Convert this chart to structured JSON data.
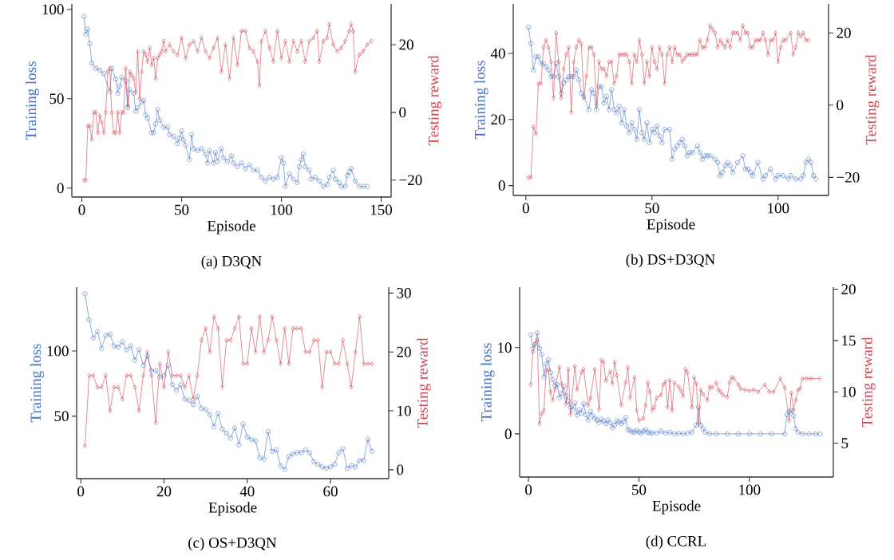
{
  "chart_data": [
    {
      "type": "line",
      "title": "(a) D3QN",
      "xlabel": "Episode",
      "ylabel": "Training loss",
      "y2label": "Testing reward",
      "xlim": [
        -5,
        155
      ],
      "xticks": [
        0,
        50,
        100,
        150
      ],
      "ylim": [
        -5,
        103
      ],
      "yticks": [
        0,
        50,
        100
      ],
      "y2lim": [
        -25,
        32
      ],
      "y2ticks": [
        {
          "value": -20,
          "label": "−20"
        },
        0,
        20
      ],
      "series": [
        {
          "color": "#4472c4",
          "marker": "circle",
          "x": [
            1,
            2,
            3,
            4,
            5,
            7,
            9,
            11,
            14,
            15,
            17,
            18,
            19,
            20,
            22,
            23,
            24,
            26,
            27,
            28,
            30,
            31,
            32,
            33,
            35,
            36,
            37,
            38,
            39,
            41,
            43,
            44,
            46,
            48,
            49,
            50,
            51,
            52,
            54,
            55,
            56,
            58,
            60,
            62,
            63,
            64,
            66,
            67,
            68,
            70,
            71,
            73,
            75,
            76,
            78,
            80,
            82,
            84,
            86,
            88,
            90,
            92,
            94,
            96,
            98,
            100,
            101,
            102,
            104,
            106,
            108,
            109,
            110,
            111,
            112,
            114,
            115,
            117,
            119,
            121,
            123,
            124,
            126,
            127,
            129,
            130,
            132,
            133,
            134,
            135,
            137,
            139,
            141,
            143
          ],
          "values": [
            96,
            86,
            89,
            81,
            70,
            67,
            66,
            64,
            54,
            67,
            61,
            53,
            57,
            62,
            60,
            45,
            55,
            53,
            43,
            45,
            48,
            49,
            41,
            39,
            31,
            31,
            36,
            44,
            38,
            34,
            34,
            30,
            29,
            25,
            28,
            32,
            27,
            24,
            16,
            30,
            22,
            21,
            22,
            19,
            14,
            21,
            14,
            20,
            15,
            22,
            17,
            15,
            18,
            14,
            12,
            14,
            11,
            13,
            10,
            10,
            6,
            4,
            6,
            5,
            6,
            17,
            14,
            1,
            8,
            5,
            3,
            12,
            16,
            19,
            12,
            10,
            5,
            6,
            4,
            1,
            2,
            6,
            10,
            5,
            3,
            1,
            1,
            7,
            9,
            11,
            4,
            1,
            1,
            1
          ]
        },
        {
          "axis": "y2",
          "color": "#d0434f",
          "marker": "diamond",
          "x": [
            1,
            2,
            3,
            4,
            5,
            6,
            7,
            8,
            9,
            10,
            11,
            12,
            13,
            14,
            15,
            16,
            17,
            18,
            19,
            20,
            21,
            22,
            23,
            24,
            25,
            26,
            27,
            28,
            29,
            30,
            31,
            32,
            33,
            34,
            35,
            36,
            37,
            38,
            39,
            40,
            41,
            42,
            44,
            46,
            48,
            50,
            52,
            54,
            56,
            58,
            60,
            62,
            64,
            66,
            68,
            70,
            72,
            74,
            76,
            78,
            80,
            82,
            84,
            86,
            88,
            89,
            90,
            92,
            94,
            96,
            98,
            100,
            102,
            104,
            106,
            108,
            110,
            112,
            114,
            116,
            118,
            119,
            121,
            123,
            124,
            126,
            128,
            130,
            132,
            134,
            135,
            136,
            137,
            139,
            141,
            143,
            145
          ],
          "values": [
            -20,
            -20,
            -4,
            -4,
            -8,
            0,
            0,
            -6,
            -1,
            -3,
            -6,
            0,
            12,
            13,
            0,
            -6,
            -6,
            0,
            -6,
            0,
            0,
            13,
            2,
            12,
            11,
            10,
            6,
            18,
            4,
            12,
            18,
            17,
            15,
            19,
            14,
            16,
            10,
            16,
            17,
            18,
            21,
            18,
            20,
            18,
            17,
            22,
            16,
            20,
            21,
            18,
            22,
            18,
            16,
            19,
            22,
            12,
            20,
            10,
            22,
            14,
            24,
            24,
            19,
            18,
            15,
            8,
            21,
            24,
            19,
            15,
            24,
            16,
            21,
            15,
            21,
            18,
            21,
            15,
            21,
            22,
            24,
            15,
            21,
            22,
            26,
            20,
            18,
            19,
            21,
            24,
            26,
            24,
            12,
            17,
            18,
            20,
            21
          ]
        }
      ]
    },
    {
      "type": "line",
      "title": "(b) DS+D3QN",
      "xlabel": "Episode",
      "ylabel": "Training loss",
      "y2label": "Testing reward",
      "xlim": [
        -5,
        120
      ],
      "xticks": [
        0,
        50,
        100
      ],
      "ylim": [
        -3,
        55
      ],
      "yticks": [
        0,
        20,
        40
      ],
      "y2lim": [
        -25,
        28
      ],
      "y2ticks": [
        {
          "value": -20,
          "label": "−20"
        },
        0,
        20
      ],
      "series": [
        {
          "color": "#4472c4",
          "marker": "circle",
          "x": [
            1,
            2,
            3,
            4,
            5,
            6,
            7,
            8,
            9,
            10,
            11,
            12,
            13,
            14,
            15,
            16,
            17,
            18,
            19,
            20,
            21,
            22,
            23,
            25,
            26,
            27,
            28,
            29,
            30,
            31,
            32,
            33,
            34,
            35,
            36,
            37,
            38,
            39,
            40,
            41,
            42,
            43,
            44,
            45,
            46,
            47,
            48,
            49,
            50,
            51,
            52,
            53,
            54,
            55,
            57,
            58,
            59,
            60,
            61,
            62,
            63,
            64,
            65,
            66,
            68,
            69,
            70,
            71,
            72,
            73,
            75,
            76,
            77,
            78,
            79,
            80,
            81,
            82,
            84,
            86,
            87,
            88,
            89,
            90,
            92,
            94,
            95,
            97,
            99,
            100,
            102,
            104,
            105,
            107,
            109,
            110,
            111,
            112,
            113,
            114,
            115
          ],
          "values": [
            48,
            43,
            35,
            39,
            39,
            37,
            37,
            36,
            35,
            33,
            33,
            37,
            33,
            28,
            31,
            32,
            33,
            33,
            33,
            35,
            32,
            28,
            27,
            23,
            29,
            28,
            23,
            30,
            30,
            25,
            27,
            23,
            29,
            23,
            22,
            24,
            19,
            23,
            18,
            16,
            19,
            17,
            14,
            23,
            16,
            14,
            19,
            13,
            17,
            16,
            18,
            15,
            13,
            17,
            17,
            8,
            11,
            12,
            13,
            14,
            12,
            9,
            10,
            10,
            12,
            10,
            8,
            9,
            9,
            9,
            8,
            7,
            3,
            4,
            6,
            7,
            6,
            4,
            7,
            9,
            5,
            5,
            4,
            3,
            7,
            2,
            3,
            5,
            2,
            3,
            3,
            2,
            3,
            2,
            2,
            3,
            7,
            8,
            7,
            3,
            2
          ]
        },
        {
          "axis": "y2",
          "color": "#d0434f",
          "marker": "diamond",
          "x": [
            1,
            2,
            3,
            4,
            5,
            6,
            7,
            8,
            9,
            10,
            11,
            12,
            13,
            14,
            15,
            16,
            17,
            18,
            19,
            20,
            21,
            22,
            23,
            24,
            25,
            26,
            27,
            28,
            29,
            30,
            31,
            32,
            33,
            34,
            35,
            36,
            37,
            38,
            39,
            40,
            41,
            42,
            43,
            44,
            45,
            46,
            47,
            48,
            49,
            50,
            51,
            52,
            53,
            54,
            55,
            56,
            57,
            58,
            59,
            60,
            61,
            62,
            63,
            64,
            65,
            66,
            67,
            68,
            69,
            70,
            71,
            72,
            73,
            74,
            75,
            76,
            77,
            78,
            79,
            80,
            81,
            82,
            83,
            84,
            85,
            86,
            87,
            88,
            89,
            90,
            91,
            92,
            93,
            94,
            95,
            96,
            97,
            98,
            99,
            100,
            101,
            102,
            103,
            105,
            106,
            107,
            108,
            109,
            110,
            111,
            112
          ],
          "values": [
            -20,
            -20,
            -6,
            -8,
            6,
            6,
            16,
            18,
            16,
            12,
            2,
            20,
            12,
            2,
            10,
            14,
            16,
            -2,
            12,
            16,
            18,
            17,
            2,
            8,
            16,
            16,
            14,
            0,
            12,
            10,
            10,
            8,
            12,
            12,
            6,
            8,
            14,
            14,
            14,
            14,
            12,
            6,
            14,
            12,
            18,
            14,
            6,
            12,
            8,
            16,
            12,
            10,
            16,
            14,
            6,
            14,
            16,
            12,
            16,
            14,
            14,
            12,
            13,
            14,
            14,
            14,
            14,
            14,
            18,
            16,
            16,
            18,
            22,
            21,
            20,
            16,
            18,
            17,
            16,
            18,
            16,
            20,
            20,
            20,
            18,
            22,
            20,
            20,
            16,
            16,
            18,
            18,
            18,
            20,
            18,
            14,
            18,
            18,
            20,
            12,
            16,
            18,
            18,
            20,
            14,
            16,
            20,
            19,
            20,
            18,
            18
          ]
        }
      ]
    },
    {
      "type": "line",
      "title": "(c) OS+D3QN",
      "xlabel": "Episode",
      "ylabel": "Training loss",
      "y2label": "Testing reward",
      "xlim": [
        -1,
        74
      ],
      "xticks": [
        0,
        20,
        40,
        60
      ],
      "ylim": [
        2,
        149
      ],
      "yticks": [
        50,
        100
      ],
      "y2lim": [
        -1.5,
        31
      ],
      "y2ticks": [
        0,
        10,
        20,
        30
      ],
      "series": [
        {
          "color": "#4472c4",
          "marker": "circle",
          "x": [
            1,
            2,
            3,
            4,
            5,
            6,
            7,
            8,
            9,
            10,
            11,
            12,
            13,
            14,
            15,
            16,
            17,
            18,
            19,
            20,
            21,
            22,
            23,
            24,
            25,
            26,
            27,
            28,
            29,
            30,
            31,
            32,
            33,
            34,
            35,
            36,
            37,
            38,
            39,
            40,
            41,
            42,
            43,
            44,
            45,
            46,
            47,
            48,
            49,
            50,
            51,
            52,
            53,
            54,
            55,
            56,
            57,
            58,
            59,
            60,
            61,
            62,
            63,
            64,
            65,
            66,
            67,
            68,
            69,
            70
          ],
          "values": [
            144,
            124,
            110,
            115,
            102,
            112,
            113,
            104,
            103,
            107,
            101,
            104,
            93,
            101,
            89,
            96,
            85,
            85,
            80,
            81,
            89,
            74,
            70,
            74,
            63,
            62,
            59,
            65,
            56,
            55,
            51,
            42,
            52,
            40,
            37,
            33,
            41,
            28,
            44,
            34,
            32,
            31,
            18,
            17,
            38,
            23,
            24,
            12,
            9,
            19,
            21,
            22,
            22,
            24,
            22,
            15,
            13,
            11,
            10,
            11,
            13,
            22,
            25,
            10,
            12,
            11,
            16,
            16,
            32,
            23
          ]
        },
        {
          "axis": "y2",
          "color": "#d0434f",
          "marker": "diamond",
          "x": [
            1,
            2,
            3,
            4,
            5,
            6,
            7,
            8,
            9,
            10,
            11,
            12,
            13,
            14,
            15,
            16,
            17,
            18,
            19,
            20,
            21,
            22,
            23,
            24,
            25,
            26,
            27,
            28,
            29,
            30,
            31,
            32,
            33,
            34,
            35,
            36,
            37,
            38,
            39,
            40,
            41,
            42,
            43,
            44,
            45,
            46,
            47,
            48,
            49,
            50,
            51,
            52,
            53,
            54,
            55,
            56,
            57,
            58,
            59,
            60,
            61,
            62,
            63,
            64,
            65,
            66,
            67,
            68,
            69,
            70
          ],
          "values": [
            4,
            16,
            16,
            14,
            14,
            16,
            10,
            14,
            14,
            12,
            16,
            16,
            14,
            10,
            16,
            20,
            16,
            8,
            18,
            14,
            20,
            16,
            16,
            16,
            14,
            16,
            12,
            16,
            22,
            24,
            20,
            26,
            24,
            14,
            22,
            22,
            24,
            26,
            18,
            18,
            24,
            20,
            26,
            20,
            22,
            26,
            22,
            18,
            24,
            18,
            24,
            24,
            24,
            20,
            20,
            22,
            22,
            14,
            20,
            20,
            18,
            18,
            22,
            18,
            14,
            20,
            26,
            18,
            18,
            18
          ]
        }
      ]
    },
    {
      "type": "line",
      "title": "(d) CCRL",
      "xlabel": "Episode",
      "ylabel": "Training loss",
      "y2label": "Testing reward",
      "xlim": [
        -4,
        138
      ],
      "xticks": [
        0,
        50,
        100
      ],
      "ylim": [
        -5,
        17
      ],
      "yticks": [
        0,
        10
      ],
      "y2lim": [
        1.7,
        20.2
      ],
      "y2ticks": [
        5,
        10,
        15,
        20
      ],
      "series": [
        {
          "color": "#4472c4",
          "marker": "circle",
          "x": [
            1,
            2,
            3,
            4,
            5,
            6,
            7,
            8,
            9,
            10,
            11,
            12,
            13,
            14,
            15,
            16,
            17,
            18,
            19,
            20,
            21,
            22,
            23,
            24,
            25,
            26,
            27,
            28,
            29,
            30,
            31,
            32,
            33,
            34,
            35,
            36,
            37,
            38,
            39,
            40,
            41,
            42,
            43,
            44,
            45,
            46,
            47,
            48,
            49,
            50,
            51,
            52,
            53,
            54,
            55,
            56,
            58,
            60,
            62,
            64,
            66,
            68,
            70,
            72,
            74,
            76,
            77,
            78,
            79,
            80,
            82,
            85,
            90,
            95,
            100,
            105,
            110,
            116,
            117,
            118,
            119,
            120,
            121,
            122,
            124,
            127,
            130,
            132
          ],
          "values": [
            11.5,
            9.9,
            10.4,
            11.7,
            9.9,
            9.2,
            6.6,
            8.1,
            8.6,
            7.1,
            6.3,
            5.6,
            5.7,
            4.2,
            4.7,
            5.5,
            4.4,
            3.8,
            3.1,
            2.8,
            3.6,
            2.2,
            2.8,
            2.4,
            3.5,
            2.2,
            1.6,
            2.6,
            2.1,
            1.8,
            1.6,
            1.3,
            1.7,
            1.5,
            1.2,
            1.6,
            1.3,
            0.7,
            1,
            1.5,
            1.4,
            1.2,
            1.4,
            1.9,
            0.5,
            0.4,
            0.2,
            0.2,
            0.4,
            0.2,
            0.1,
            0.3,
            0.5,
            0.2,
            0.1,
            0.1,
            0.1,
            0.3,
            0.1,
            0.2,
            0,
            0.1,
            0,
            0.1,
            0.2,
            1,
            3.1,
            1,
            0.6,
            0.2,
            0,
            0,
            0,
            0,
            0,
            0,
            0,
            0,
            2.2,
            2.6,
            2.7,
            2.1,
            0.6,
            0.2,
            0,
            0,
            0,
            0
          ]
        },
        {
          "axis": "y2",
          "color": "#d0434f",
          "marker": "diamond",
          "x": [
            1,
            2,
            3,
            4,
            5,
            6,
            7,
            8,
            9,
            10,
            11,
            12,
            14,
            15,
            17,
            18,
            19,
            21,
            22,
            24,
            25,
            27,
            28,
            30,
            32,
            33,
            34,
            35,
            37,
            38,
            39,
            40,
            42,
            44,
            45,
            46,
            48,
            49,
            50,
            52,
            53,
            54,
            55,
            56,
            57,
            58,
            60,
            61,
            62,
            63,
            64,
            65,
            66,
            68,
            69,
            70,
            71,
            72,
            74,
            75,
            76,
            77,
            78,
            79,
            81,
            82,
            83,
            85,
            86,
            87,
            88,
            90,
            91,
            92,
            93,
            95,
            96,
            98,
            100,
            102,
            104,
            107,
            109,
            111,
            114,
            116,
            118,
            119,
            120,
            121,
            122,
            123,
            124,
            126,
            128,
            132
          ],
          "values": [
            10.7,
            13.9,
            14.7,
            15.1,
            6.9,
            7.9,
            8.2,
            12.1,
            12.2,
            10,
            9.2,
            10.3,
            12.4,
            10.8,
            8.8,
            12.2,
            7.8,
            12.5,
            10.2,
            11.9,
            12.2,
            8.7,
            9.4,
            12.2,
            8.3,
            13.1,
            12.9,
            11.1,
            12,
            10.8,
            12.9,
            11.6,
            8.7,
            10.9,
            12.4,
            9.4,
            11.4,
            8.2,
            7.2,
            7.4,
            8.7,
            10.9,
            10,
            8.2,
            8.5,
            9.4,
            9.7,
            10.7,
            11,
            8.5,
            11.1,
            8.2,
            10.9,
            10.5,
            10.1,
            9.6,
            12.2,
            11.9,
            8.5,
            11.4,
            10.8,
            6.9,
            10.2,
            9.8,
            9.2,
            10.5,
            10.4,
            10.9,
            10.2,
            10,
            9.7,
            9.5,
            10.9,
            11.4,
            11.3,
            10.7,
            10.3,
            10.2,
            10.1,
            10.2,
            10,
            10.7,
            10,
            10,
            11.3,
            10.4,
            7.2,
            9.9,
            8.2,
            9.2,
            10.2,
            10.3,
            11.3,
            11.3,
            11.3,
            11.3
          ]
        }
      ]
    }
  ]
}
